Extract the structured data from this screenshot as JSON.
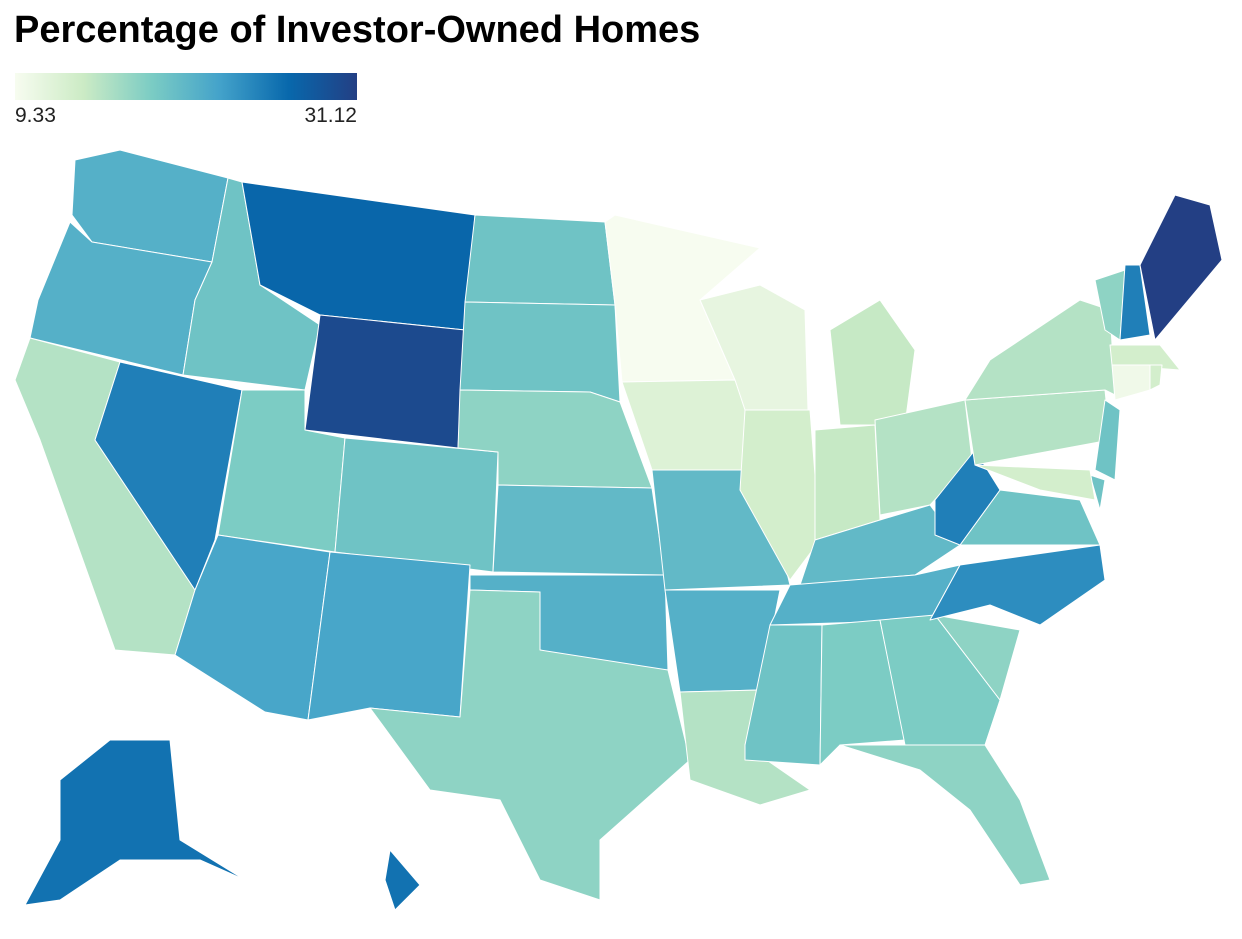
{
  "chart_data": {
    "type": "choropleth",
    "title": "Percentage of Investor-Owned Homes",
    "colorbar": {
      "min": 9.33,
      "max": 31.12
    },
    "colors": [
      "#f7fcf0",
      "#ccebc5",
      "#7bccc4",
      "#43a2ca",
      "#0868ac",
      "#233f84"
    ],
    "values": [
      21,
      21,
      15,
      25,
      19,
      27,
      30,
      18,
      19,
      22,
      22,
      19,
      19,
      17,
      20,
      21,
      17,
      9.33,
      12,
      20,
      21,
      15,
      11,
      13,
      14,
      14,
      15,
      20,
      21,
      19,
      18,
      18,
      17,
      17,
      24,
      19,
      25,
      15,
      15,
      19,
      19,
      13,
      17,
      25,
      31.12,
      13,
      10,
      13,
      26,
      26
    ]
  }
}
